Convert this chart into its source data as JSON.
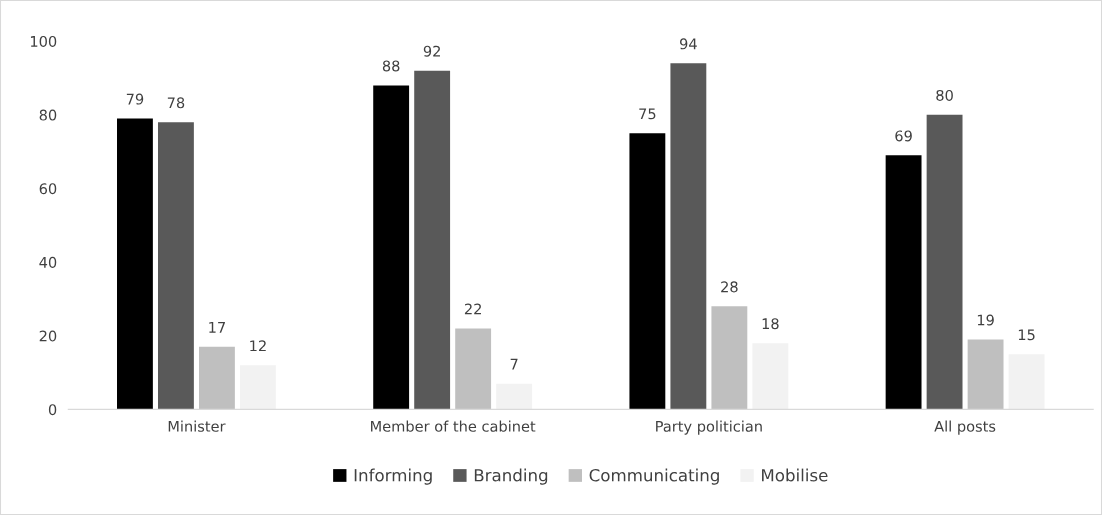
{
  "chart_data": {
    "type": "bar",
    "categories": [
      "Minister",
      "Member of the cabinet",
      "Party politician",
      "All posts"
    ],
    "series": [
      {
        "name": "Informing",
        "color": "#000000",
        "values": [
          79,
          88,
          75,
          69
        ]
      },
      {
        "name": "Branding",
        "color": "#595959",
        "values": [
          78,
          92,
          94,
          80
        ]
      },
      {
        "name": "Communicating",
        "color": "#bfbfbf",
        "values": [
          17,
          22,
          28,
          19
        ]
      },
      {
        "name": "Mobilise",
        "color": "#f2f2f2",
        "values": [
          12,
          7,
          18,
          15
        ]
      }
    ],
    "ylim": [
      0,
      100
    ],
    "yticks": [
      0,
      20,
      40,
      60,
      80,
      100
    ],
    "data_labels": true,
    "grid": false,
    "legend": "bottom"
  }
}
